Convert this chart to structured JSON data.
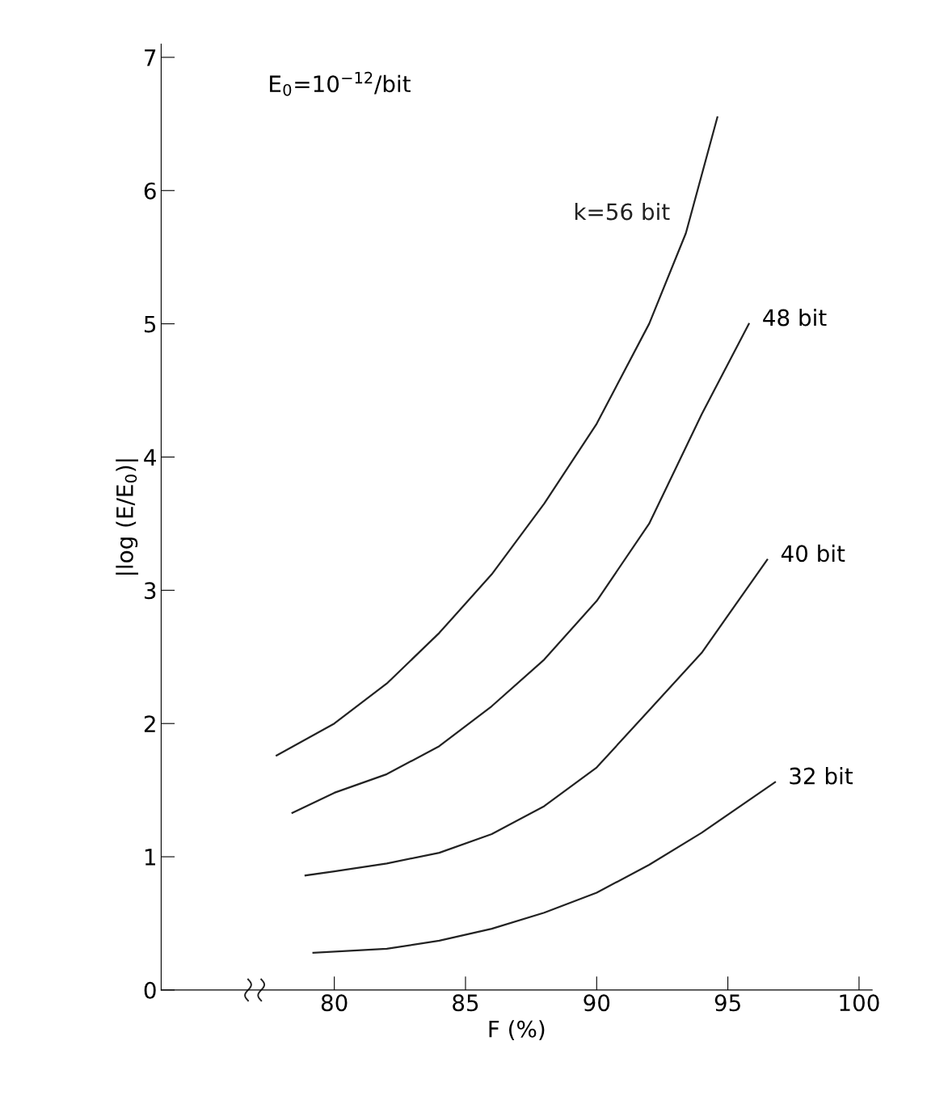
{
  "chart_data": {
    "type": "line",
    "xlabel": "F (%)",
    "ylabel": "|log (E/E$_{0}$)|",
    "annotations": [
      "E$_{0}$=10$^{−12}$/bit"
    ],
    "series": [
      {
        "name": "k=56 bit",
        "color": "#222222",
        "x": [
          77.8,
          80,
          82,
          84,
          86,
          88,
          90,
          92,
          93.4,
          94.6
        ],
        "values": [
          1.76,
          2.0,
          2.3,
          2.68,
          3.12,
          3.65,
          4.25,
          5.0,
          5.68,
          6.55
        ]
      },
      {
        "name": "48 bit",
        "color": "#222222",
        "x": [
          78.4,
          80,
          82,
          84,
          86,
          88,
          90,
          92,
          94,
          95.8
        ],
        "values": [
          1.33,
          1.48,
          1.62,
          1.83,
          2.13,
          2.48,
          2.92,
          3.5,
          4.32,
          5.0
        ]
      },
      {
        "name": "40 bit",
        "color": "#222222",
        "x": [
          78.9,
          80,
          82,
          84,
          86,
          88,
          90,
          92,
          94,
          96.5
        ],
        "values": [
          0.86,
          0.89,
          0.95,
          1.03,
          1.17,
          1.38,
          1.67,
          2.1,
          2.53,
          3.23
        ]
      },
      {
        "name": "32 bit",
        "color": "#222222",
        "x": [
          79.2,
          82,
          84,
          86,
          88,
          90,
          92,
          94,
          96.8
        ],
        "values": [
          0.28,
          0.31,
          0.37,
          0.46,
          0.58,
          0.73,
          0.94,
          1.18,
          1.56
        ]
      }
    ],
    "xlim": [
      73.4,
      100.5
    ],
    "xticks": [
      80,
      85,
      90,
      95,
      100
    ],
    "ylim": [
      0,
      7.1
    ],
    "yticks": [
      0,
      1,
      2,
      3,
      4,
      5,
      6,
      7
    ],
    "grid": false,
    "legend": false
  }
}
